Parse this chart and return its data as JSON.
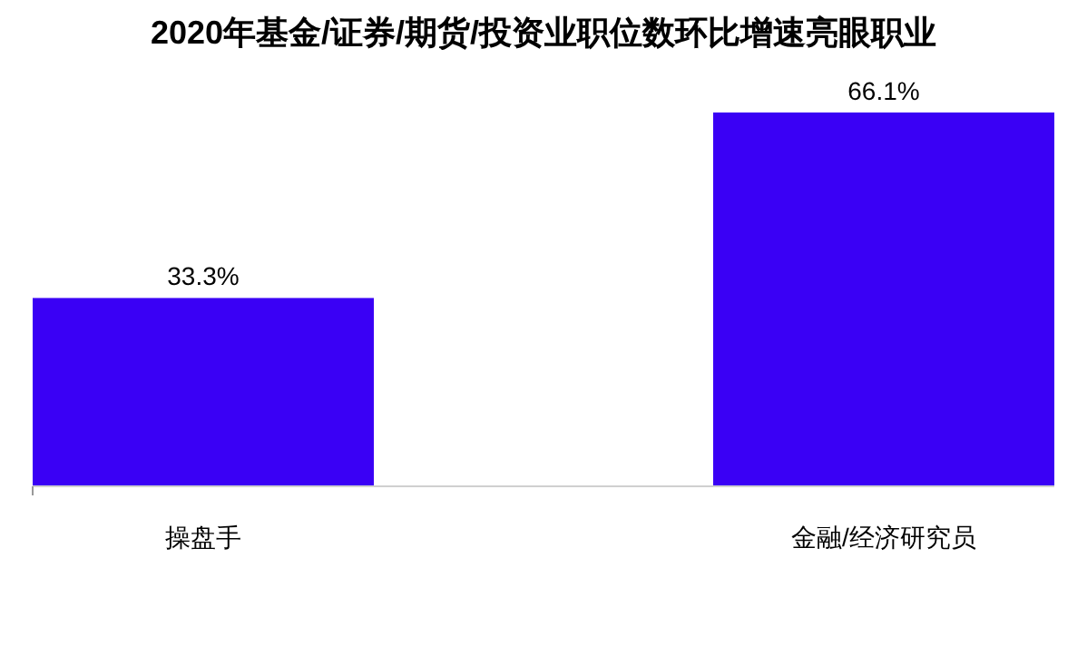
{
  "chart_data": {
    "type": "bar",
    "title": "2020年基金/证券/期货/投资业职位数环比增速亮眼职业",
    "categories": [
      "操盘手",
      "金融/经济研究员"
    ],
    "values": [
      33.3,
      66.1
    ],
    "value_labels": [
      "33.3%",
      "66.1%"
    ],
    "color": "#3a00f5"
  }
}
